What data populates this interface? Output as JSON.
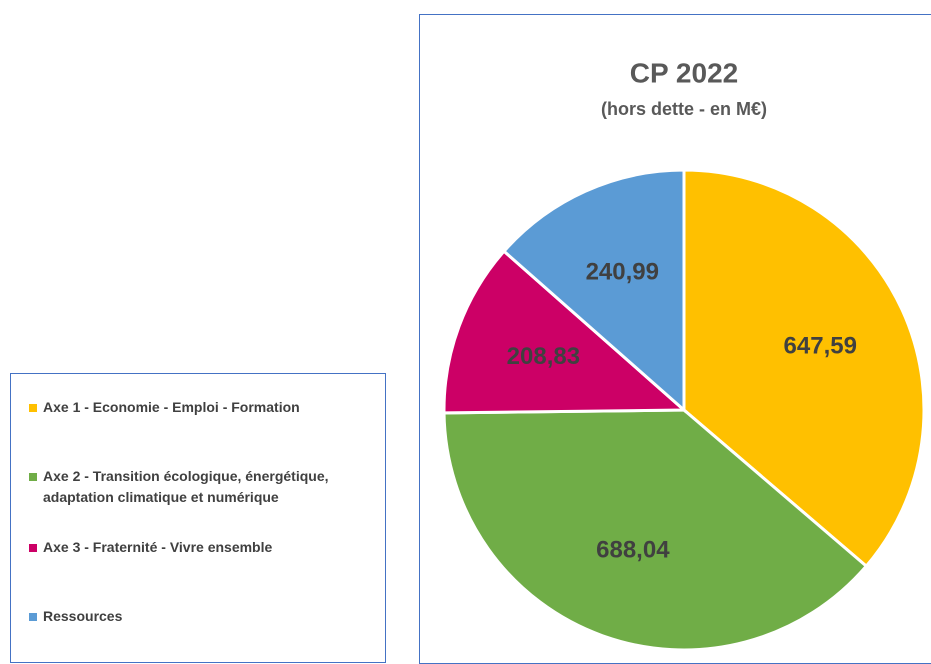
{
  "chart_data": {
    "type": "pie",
    "title": "CP 2022",
    "subtitle": "(hors dette - en M€)",
    "categories": [
      "Axe 1 - Economie - Emploi - Formation",
      "Axe 2 - Transition écologique, énergétique, adaptation climatique et numérique",
      "Axe 3 - Fraternité - Vivre ensemble",
      "Ressources"
    ],
    "values": [
      647.59,
      688.04,
      208.83,
      240.99
    ],
    "value_labels": [
      "647,59",
      "688,04",
      "208,83",
      "240,99"
    ],
    "colors": [
      "#FFC000",
      "#70AD47",
      "#CC0066",
      "#5B9BD5"
    ]
  }
}
